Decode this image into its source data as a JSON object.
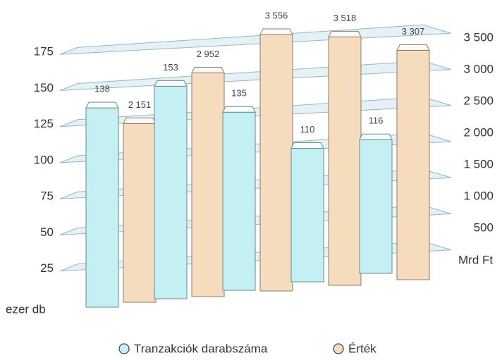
{
  "chart_data": {
    "type": "bar",
    "categories": [
      null,
      null,
      null,
      null,
      null
    ],
    "series": [
      {
        "name": "Tranzakciók darabszáma",
        "color": "#c4f0f3",
        "values": [
          138,
          153,
          135,
          110,
          116
        ]
      },
      {
        "name": "Érték",
        "color": "#f5dcbd",
        "axis": "y2",
        "values": [
          2151,
          2952,
          3556,
          3518,
          3307
        ],
        "value_labels": [
          "2 151",
          "2 952",
          "3 556",
          "3 518",
          "3 307"
        ]
      }
    ],
    "y_label": "ezer db",
    "y2_label": "Mrd Ft",
    "ylim": [
      0,
      200
    ],
    "yticks": [
      25,
      50,
      75,
      100,
      125,
      150,
      175
    ],
    "y2lim": [
      0,
      4000
    ],
    "y2ticks": [
      500,
      {
        "value": 1000,
        "label": "1 000"
      },
      {
        "value": 1500,
        "label": "1 500"
      },
      {
        "value": 2000,
        "label": "2 000"
      },
      {
        "value": 2500,
        "label": "2 500"
      },
      {
        "value": 3000,
        "label": "3 000"
      },
      {
        "value": 3500,
        "label": "3 500"
      }
    ],
    "grid": true,
    "legend": "bottom"
  }
}
